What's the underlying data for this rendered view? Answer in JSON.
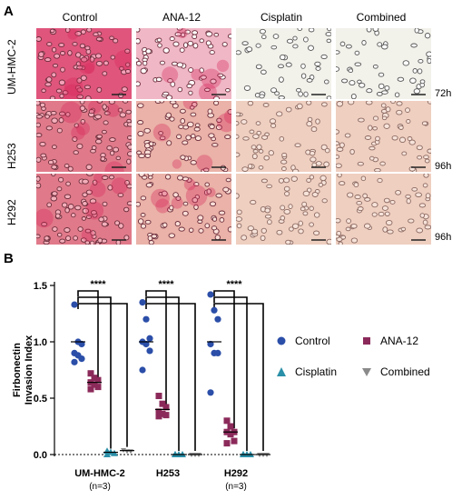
{
  "panel_a": {
    "letter": "A",
    "columns": [
      "Control",
      "ANA-12",
      "Cisplatin",
      "Combined"
    ],
    "rows": [
      {
        "label": "UM-HMC-2",
        "time": "72h"
      },
      {
        "label": "H253",
        "time": ""
      },
      {
        "label": "H292",
        "time": "96h"
      }
    ],
    "extra_time": "96h",
    "colors": {
      "dense_stain": "#e0557c",
      "dense_bg": "#f0b7c6",
      "light_bg": "#f2f1ea",
      "tissue_bg": "#efcfc0",
      "membrane_pore": "#ffffff",
      "cell_dark": "#6b2c3a"
    }
  },
  "panel_b": {
    "letter": "B",
    "chart_data": {
      "type": "scatter",
      "ylabel": "Firbonectin\nInvasion Index",
      "ylim": [
        0,
        1.5
      ],
      "yticks": [
        0.0,
        0.5,
        1.0,
        1.5
      ],
      "categories": [
        "UM-HMC-2",
        "H253",
        "H292"
      ],
      "category_notes": [
        "(n=3)",
        "",
        "(n=3)"
      ],
      "significance": "****",
      "series": [
        {
          "name": "Control",
          "color": "#2b4ea8",
          "marker": "circle",
          "values": [
            [
              1.33,
              1.0,
              0.98,
              0.9,
              0.88,
              0.85,
              0.82
            ],
            [
              1.35,
              1.2,
              1.03,
              1.0,
              0.98,
              0.92,
              0.75
            ],
            [
              1.42,
              1.28,
              1.2,
              0.98,
              0.9,
              0.9,
              0.55
            ]
          ],
          "means": [
            1.0,
            1.0,
            1.0
          ]
        },
        {
          "name": "ANA-12",
          "color": "#8b2a5a",
          "marker": "square",
          "values": [
            [
              0.72,
              0.68,
              0.66,
              0.64,
              0.62,
              0.6,
              0.58
            ],
            [
              0.52,
              0.45,
              0.42,
              0.38,
              0.36,
              0.35,
              0.34
            ],
            [
              0.3,
              0.25,
              0.2,
              0.2,
              0.18,
              0.12,
              0.1
            ]
          ],
          "means": [
            0.64,
            0.4,
            0.2
          ]
        },
        {
          "name": "Cisplatin",
          "color": "#2a8fa8",
          "marker": "triangle",
          "values": [
            [
              0.03,
              0.02,
              0.01,
              0.0
            ],
            [
              0.0,
              0.0,
              0.0,
              0.0
            ],
            [
              0.0,
              0.0,
              0.0,
              0.0
            ]
          ],
          "means": [
            0.02,
            0.0,
            0.0
          ]
        },
        {
          "name": "Combined",
          "color": "#8a8a8a",
          "marker": "triangle-down",
          "values": [
            [
              0.04,
              0.03,
              0.03
            ],
            [
              0.0,
              0.0,
              0.0
            ],
            [
              0.0,
              0.0,
              0.0
            ]
          ],
          "means": [
            0.035,
            0.0,
            0.0
          ]
        }
      ],
      "legend_placement": "right"
    }
  }
}
